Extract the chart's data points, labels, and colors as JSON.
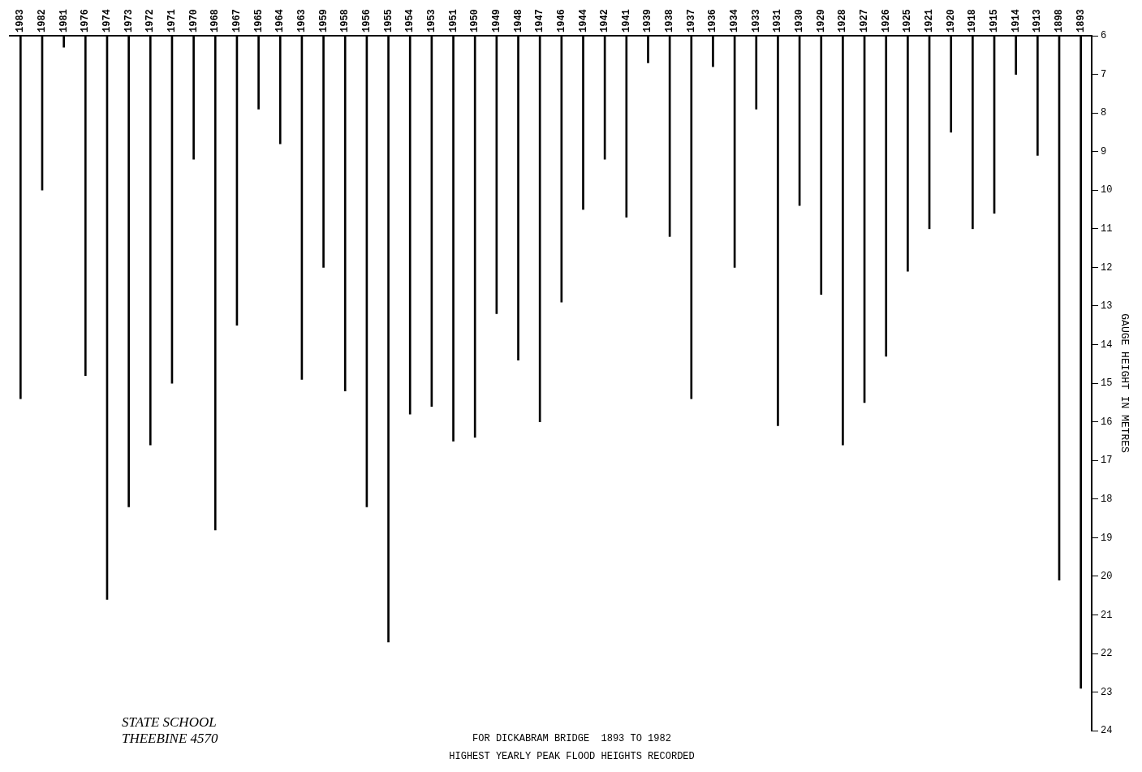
{
  "chart_data": {
    "type": "bar",
    "title": "HIGHEST YEARLY PEAK FLOOD HEIGHTS RECORDED",
    "subtitle": "FOR DICKABRAM BRIDGE  1893 TO 1982",
    "ylabel": "GAUGE HEIGHT IN METRES",
    "categories": [
      "1983",
      "1982",
      "1981",
      "1976",
      "1974",
      "1973",
      "1972",
      "1971",
      "1970",
      "1968",
      "1967",
      "1965",
      "1964",
      "1963",
      "1959",
      "1958",
      "1956",
      "1955",
      "1954",
      "1953",
      "1951",
      "1950",
      "1949",
      "1948",
      "1947",
      "1946",
      "1944",
      "1942",
      "1941",
      "1939",
      "1938",
      "1937",
      "1936",
      "1934",
      "1933",
      "1931",
      "1930",
      "1929",
      "1928",
      "1927",
      "1926",
      "1925",
      "1921",
      "1920",
      "1918",
      "1915",
      "1914",
      "1913",
      "1898",
      "1893"
    ],
    "values": [
      15.4,
      10.0,
      6.3,
      14.8,
      20.6,
      18.2,
      16.6,
      15.0,
      9.2,
      18.8,
      13.5,
      7.9,
      8.8,
      14.9,
      12.0,
      15.2,
      18.2,
      21.7,
      15.8,
      15.6,
      16.5,
      16.4,
      13.2,
      14.4,
      16.0,
      12.9,
      10.5,
      9.2,
      10.7,
      6.7,
      11.2,
      15.4,
      6.8,
      12.0,
      7.9,
      16.1,
      10.4,
      12.7,
      16.6,
      15.5,
      14.3,
      12.1,
      11.0,
      8.5,
      11.0,
      10.6,
      7.0,
      9.1,
      20.1,
      22.9
    ],
    "color": "#000000",
    "ylim": [
      24,
      6
    ],
    "yticks": [
      6,
      7,
      8,
      9,
      10,
      11,
      12,
      13,
      14,
      15,
      16,
      17,
      18,
      19,
      20,
      21,
      22,
      23,
      24
    ],
    "grid": false,
    "annotations": [
      "STATE SCHOOL\nTHEEBINE 4570"
    ]
  }
}
